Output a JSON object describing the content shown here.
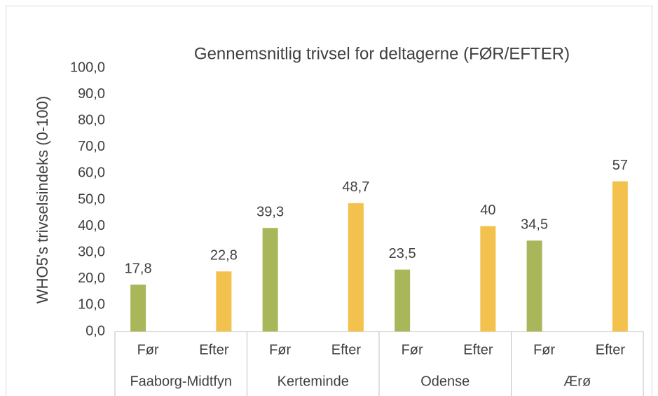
{
  "chart_data": {
    "type": "bar",
    "title": "Gennemsnitlig trivsel for deltagerne (FØR/EFTER)",
    "ylabel": "WHO5's trivselsindeks (0-100)",
    "categories": [
      "Før",
      "Efter",
      "Før",
      "Efter",
      "Før",
      "Efter",
      "Før",
      "Efter"
    ],
    "groups": [
      "Faaborg-Midtfyn",
      "Kerteminde",
      "Odense",
      "Ærø"
    ],
    "series": [
      {
        "color": "#a9b65a",
        "values": [
          17.8,
          null,
          39.3,
          null,
          23.5,
          null,
          34.5,
          null
        ],
        "value_labels": [
          "17,8",
          null,
          "39,3",
          null,
          "23,5",
          null,
          "34,5",
          null
        ]
      },
      {
        "color": "#f2c14e",
        "values": [
          null,
          22.8,
          null,
          48.7,
          null,
          40,
          null,
          57
        ],
        "value_labels": [
          null,
          "22,8",
          null,
          "48,7",
          null,
          "40",
          null,
          "57"
        ]
      }
    ],
    "ylim": [
      0,
      100
    ],
    "yticks": [
      {
        "value": 0,
        "label": "0,0"
      },
      {
        "value": 10,
        "label": "10,0"
      },
      {
        "value": 20,
        "label": "20,0"
      },
      {
        "value": 30,
        "label": "30,0"
      },
      {
        "value": 40,
        "label": "40,0"
      },
      {
        "value": 50,
        "label": "50,0"
      },
      {
        "value": 60,
        "label": "60,0"
      },
      {
        "value": 70,
        "label": "70,0"
      },
      {
        "value": 80,
        "label": "80,0"
      },
      {
        "value": 90,
        "label": "90,0"
      },
      {
        "value": 100,
        "label": "100,0"
      }
    ],
    "grid": false
  }
}
